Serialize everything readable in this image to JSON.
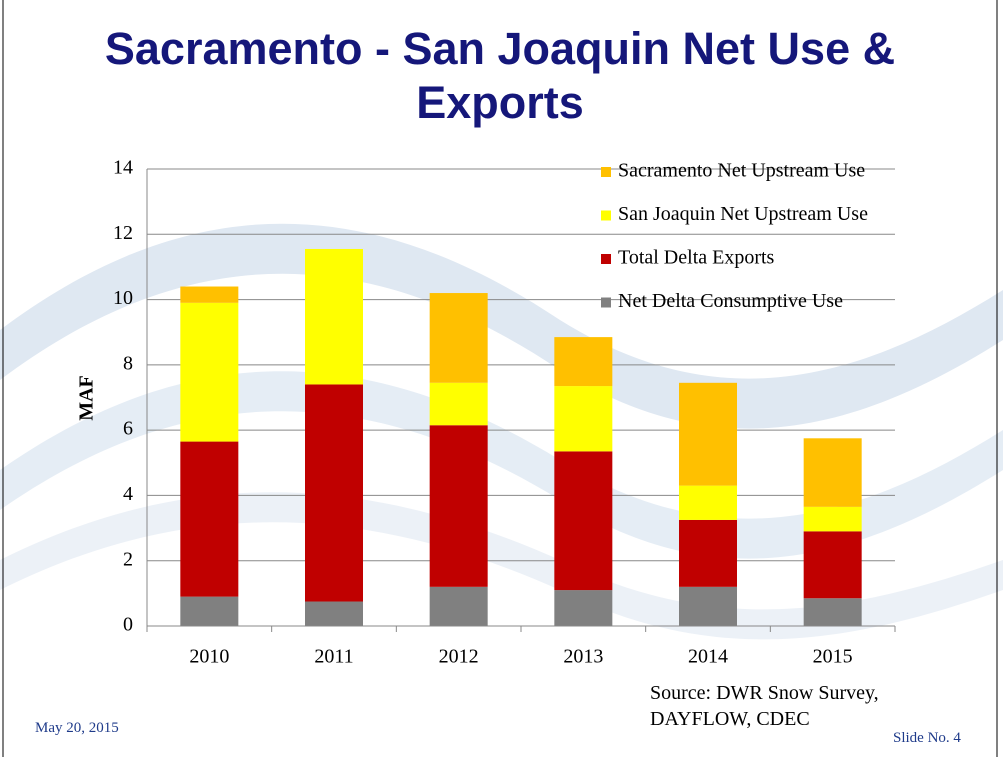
{
  "title": "Sacramento - San Joaquin Net Use & Exports",
  "chart_data": {
    "type": "stacked_bar",
    "y_label": "MAF",
    "categories": [
      "2010",
      "2011",
      "2012",
      "2013",
      "2014",
      "2015"
    ],
    "series": [
      {
        "name": "Sacramento Net Upstream Use",
        "color": "#ffc000",
        "values": [
          0.5,
          0,
          2.75,
          1.5,
          3.15,
          2.1
        ]
      },
      {
        "name": "San Joaquin Net Upstream Use",
        "color": "#ffff00",
        "values": [
          4.25,
          4.15,
          1.3,
          2.0,
          1.05,
          0.75
        ]
      },
      {
        "name": "Total Delta Exports",
        "color": "#c00000",
        "values": [
          4.75,
          6.65,
          4.95,
          4.25,
          2.05,
          2.05
        ]
      },
      {
        "name": "Net Delta Consumptive Use",
        "color": "#808080",
        "values": [
          0.9,
          0.75,
          1.2,
          1.1,
          1.2,
          0.85
        ]
      }
    ],
    "ylim": [
      0,
      14
    ],
    "yticks": [
      0,
      2,
      4,
      6,
      8,
      10,
      12,
      14
    ],
    "grid": true,
    "legend": "top-right"
  },
  "source": "Source: DWR Snow Survey, DAYFLOW, CDEC",
  "date": "May 20, 2015",
  "slide": "Slide No. 4"
}
